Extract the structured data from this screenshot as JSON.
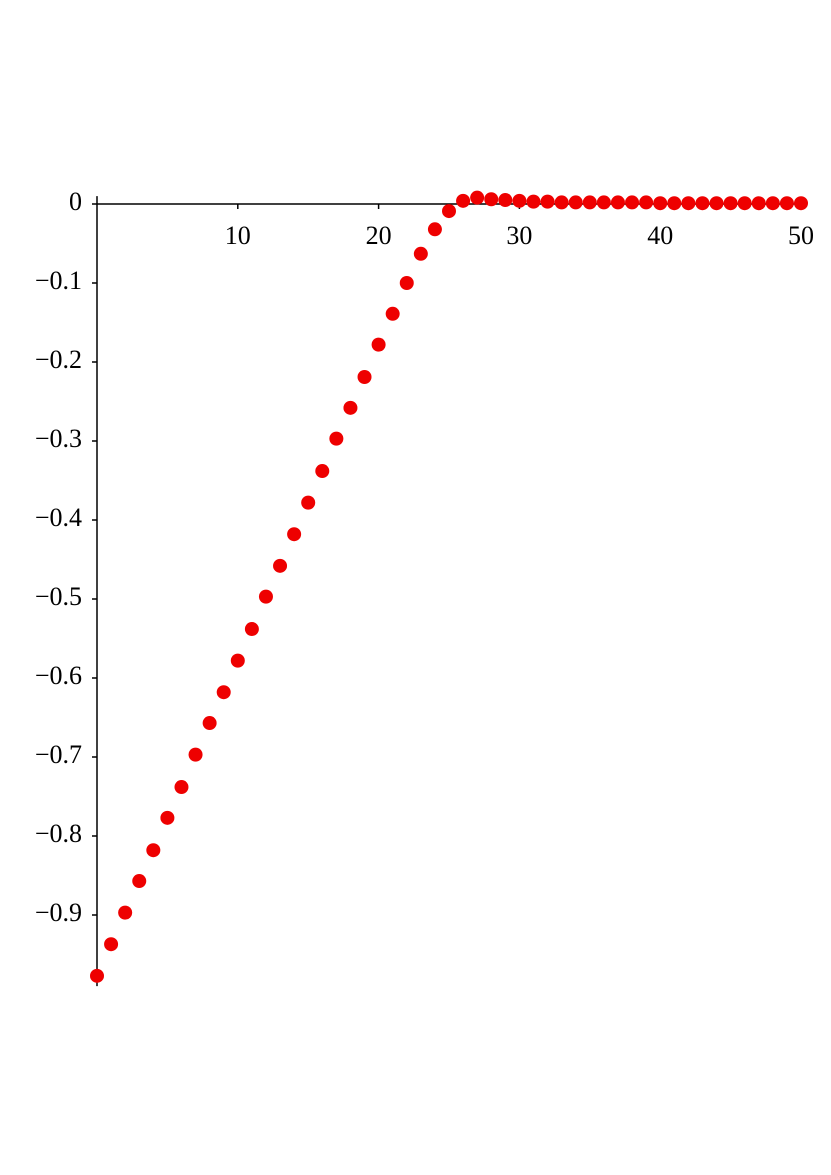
{
  "chart_data": {
    "type": "scatter",
    "x": [
      0,
      1,
      2,
      3,
      4,
      5,
      6,
      7,
      8,
      9,
      10,
      11,
      12,
      13,
      14,
      15,
      16,
      17,
      18,
      19,
      20,
      21,
      22,
      23,
      24,
      25,
      26,
      27,
      28,
      29,
      30,
      31,
      32,
      33,
      34,
      35,
      36,
      37,
      38,
      39,
      40,
      41,
      42,
      43,
      44,
      45,
      46,
      47,
      48,
      49,
      50
    ],
    "series": [
      {
        "color": "#ee0000",
        "values": [
          -0.977,
          -0.937,
          -0.897,
          -0.857,
          -0.818,
          -0.777,
          -0.738,
          -0.697,
          -0.657,
          -0.618,
          -0.578,
          -0.538,
          -0.497,
          -0.458,
          -0.418,
          -0.378,
          -0.338,
          -0.297,
          -0.258,
          -0.219,
          -0.178,
          -0.139,
          -0.1,
          -0.063,
          -0.032,
          -0.009,
          0.004,
          0.008,
          0.006,
          0.005,
          0.004,
          0.003,
          0.003,
          0.002,
          0.002,
          0.002,
          0.002,
          0.002,
          0.002,
          0.002,
          0.001,
          0.001,
          0.001,
          0.001,
          0.001,
          0.001,
          0.001,
          0.001,
          0.001,
          0.001,
          0.001
        ]
      }
    ],
    "xlim": [
      0,
      50
    ],
    "ylim": [
      -0.99,
      0.01
    ],
    "xticks": [
      10,
      20,
      30,
      40,
      50
    ],
    "yticks": [
      0,
      {
        "value": -0.1,
        "label": "−0.1"
      },
      {
        "value": -0.2,
        "label": "−0.2"
      },
      {
        "value": -0.3,
        "label": "−0.3"
      },
      {
        "value": -0.4,
        "label": "−0.4"
      },
      {
        "value": -0.5,
        "label": "−0.5"
      },
      {
        "value": -0.6,
        "label": "−0.6"
      },
      {
        "value": -0.7,
        "label": "−0.7"
      },
      {
        "value": -0.8,
        "label": "−0.8"
      },
      {
        "value": -0.9,
        "label": "−0.9"
      }
    ],
    "grid": false
  }
}
